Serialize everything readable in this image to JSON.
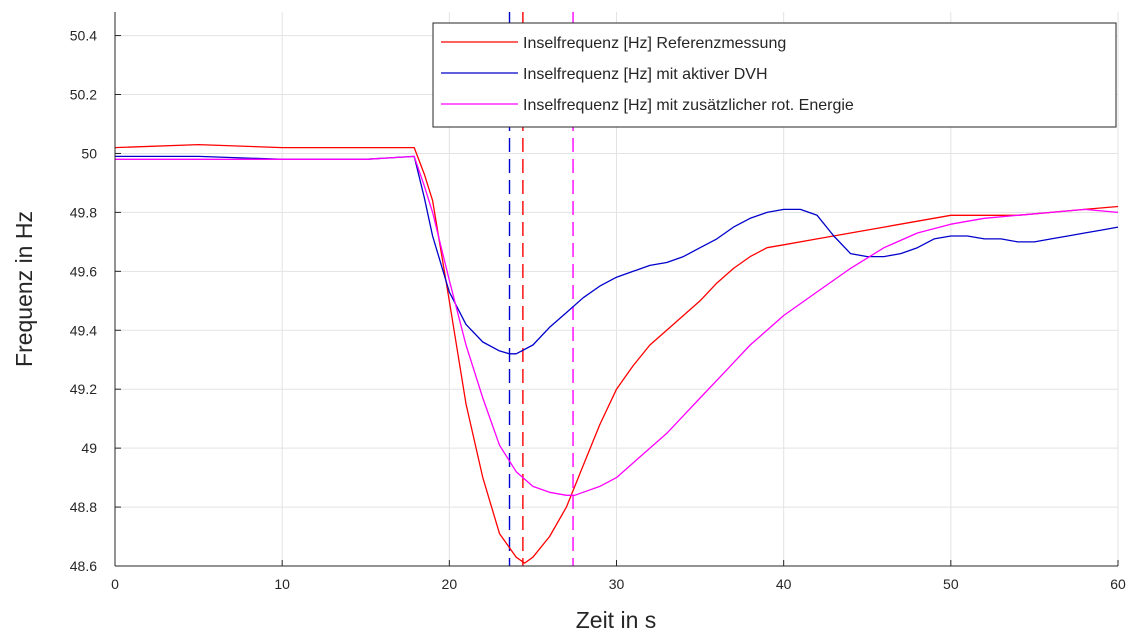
{
  "chart_data": {
    "type": "line",
    "title": "",
    "xlabel": "Zeit in s",
    "ylabel": "Frequenz in Hz",
    "xlim": [
      0,
      60
    ],
    "ylim": [
      48.6,
      50.48
    ],
    "x_ticks": [
      0,
      10,
      20,
      30,
      40,
      50,
      60
    ],
    "x_tick_labels": [
      "0",
      "10",
      "20",
      "30",
      "40",
      "50",
      "60"
    ],
    "y_ticks": [
      48.6,
      48.8,
      49.0,
      49.2,
      49.4,
      49.6,
      49.8,
      50.0,
      50.2,
      50.4
    ],
    "y_tick_labels": [
      "48.6",
      "48.8",
      "49",
      "49.2",
      "49.4",
      "49.6",
      "49.8",
      "50",
      "50.2",
      "50.4"
    ],
    "grid": true,
    "legend_position": "top-right",
    "series": [
      {
        "name": "Inselfrequenz [Hz] Referenzmessung",
        "color": "#ff0000",
        "x": [
          0,
          5,
          10,
          15,
          17.9,
          18.5,
          19,
          20,
          21,
          22,
          23,
          24,
          24.5,
          25,
          26,
          27,
          28,
          29,
          30,
          31,
          32,
          33,
          34,
          35,
          36,
          37,
          38,
          39,
          40,
          42,
          44,
          46,
          48,
          50,
          52,
          54,
          56,
          58,
          60
        ],
        "y": [
          50.02,
          50.03,
          50.02,
          50.02,
          50.02,
          49.93,
          49.84,
          49.5,
          49.15,
          48.9,
          48.71,
          48.63,
          48.61,
          48.63,
          48.7,
          48.8,
          48.94,
          49.08,
          49.2,
          49.28,
          49.35,
          49.4,
          49.45,
          49.5,
          49.56,
          49.61,
          49.65,
          49.68,
          49.69,
          49.71,
          49.73,
          49.75,
          49.77,
          49.79,
          49.79,
          49.79,
          49.8,
          49.81,
          49.82
        ]
      },
      {
        "name": "Inselfrequenz [Hz] mit aktiver DVH",
        "color": "#0000cc",
        "x": [
          0,
          5,
          10,
          15,
          17.9,
          18.5,
          19,
          20,
          21,
          22,
          23,
          23.6,
          24,
          25,
          26,
          27,
          28,
          29,
          30,
          31,
          32,
          33,
          34,
          35,
          36,
          37,
          38,
          39,
          40,
          41,
          42,
          43,
          44,
          45,
          46,
          47,
          48,
          49,
          50,
          51,
          52,
          53,
          54,
          55,
          56,
          57,
          58,
          59,
          60
        ],
        "y": [
          49.99,
          49.99,
          49.98,
          49.98,
          49.99,
          49.85,
          49.72,
          49.53,
          49.42,
          49.36,
          49.33,
          49.32,
          49.32,
          49.35,
          49.41,
          49.46,
          49.51,
          49.55,
          49.58,
          49.6,
          49.62,
          49.63,
          49.65,
          49.68,
          49.71,
          49.75,
          49.78,
          49.8,
          49.81,
          49.81,
          49.79,
          49.72,
          49.66,
          49.65,
          49.65,
          49.66,
          49.68,
          49.71,
          49.72,
          49.72,
          49.71,
          49.71,
          49.7,
          49.7,
          49.71,
          49.72,
          49.73,
          49.74,
          49.75
        ]
      },
      {
        "name": "Inselfrequenz [Hz] mit zusätzlicher rot. Energie",
        "color": "#ff00ff",
        "x": [
          0,
          5,
          10,
          15,
          17.9,
          18.5,
          19,
          20,
          21,
          22,
          23,
          24,
          25,
          26,
          27,
          27.5,
          28,
          29,
          30,
          31,
          32,
          33,
          34,
          35,
          36,
          37,
          38,
          39,
          40,
          42,
          44,
          46,
          48,
          50,
          52,
          54,
          56,
          58,
          60
        ],
        "y": [
          49.98,
          49.98,
          49.98,
          49.98,
          49.99,
          49.89,
          49.8,
          49.57,
          49.35,
          49.17,
          49.01,
          48.92,
          48.87,
          48.85,
          48.84,
          48.84,
          48.85,
          48.87,
          48.9,
          48.95,
          49.0,
          49.05,
          49.11,
          49.17,
          49.23,
          49.29,
          49.35,
          49.4,
          49.45,
          49.53,
          49.61,
          49.68,
          49.73,
          49.76,
          49.78,
          49.79,
          49.8,
          49.81,
          49.8
        ]
      }
    ],
    "markers": [
      {
        "x": 23.6,
        "color": "#0000cc"
      },
      {
        "x": 24.4,
        "color": "#ff0000"
      },
      {
        "x": 27.4,
        "color": "#ff00ff"
      }
    ]
  }
}
